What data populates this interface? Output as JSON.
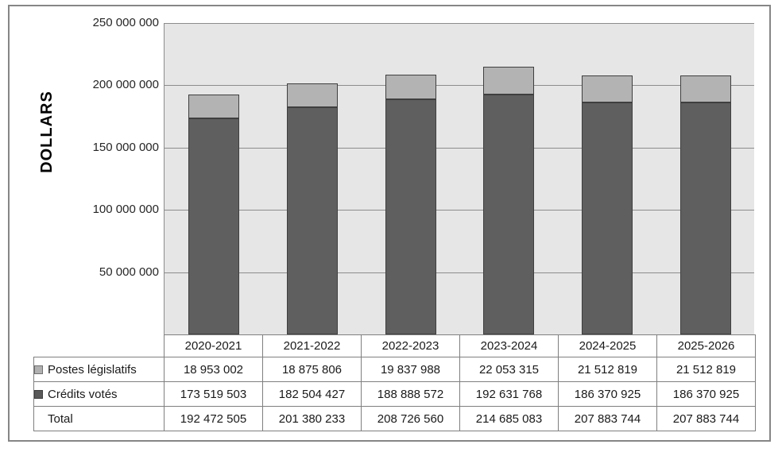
{
  "chart_data": {
    "type": "bar",
    "stacked": true,
    "title": "",
    "ylabel": "DOLLARS",
    "xlabel": "",
    "categories": [
      "2020-2021",
      "2021-2022",
      "2022-2023",
      "2023-2024",
      "2024-2025",
      "2025-2026"
    ],
    "series": [
      {
        "name": "Postes législatifs",
        "color": "#b3b3b3",
        "values": [
          18953002,
          18875806,
          19837988,
          22053315,
          21512819,
          21512819
        ]
      },
      {
        "name": "Crédits votés",
        "color": "#5f5f5f",
        "values": [
          173519503,
          182504427,
          188888572,
          192631768,
          186370925,
          186370925
        ]
      }
    ],
    "totals": [
      192472505,
      201380233,
      208726560,
      214685083,
      207883744,
      207883744
    ],
    "ylim": [
      0,
      250000000
    ],
    "ytick_interval": 50000000,
    "ytick_labels": [
      "250 000 000",
      "200 000 000",
      "150 000 000",
      "100 000 000",
      "50 000 000"
    ],
    "grid": true,
    "legend_position": "table-left",
    "plot_background": "#e6e6e6"
  },
  "table": {
    "header": [
      "2020-2021",
      "2021-2022",
      "2022-2023",
      "2023-2024",
      "2024-2025",
      "2025-2026"
    ],
    "rows": [
      {
        "label": "Postes législatifs",
        "swatch_color": "#b0b0b0",
        "swatch_border": "#707070",
        "values": [
          "18 953 002",
          "18 875 806",
          "19 837 988",
          "22 053 315",
          "21 512 819",
          "21 512 819"
        ]
      },
      {
        "label": "Crédits votés",
        "swatch_color": "#595959",
        "swatch_border": "#3f3f3f",
        "values": [
          "173 519 503",
          "182 504 427",
          "188 888 572",
          "192 631 768",
          "186 370 925",
          "186 370 925"
        ]
      },
      {
        "label": "Total",
        "swatch_color": null,
        "swatch_border": null,
        "values": [
          "192 472 505",
          "201 380 233",
          "208 726 560",
          "214 685 083",
          "207 883 744",
          "207 883 744"
        ]
      }
    ]
  },
  "colors": {
    "series_light": "#b3b3b3",
    "series_dark": "#5f5f5f",
    "bar_border": "#3f3f3f",
    "plot_background": "#e6e6e6",
    "gridline": "#8c8c8c",
    "table_border": "#7f7f7f",
    "figure_border": "#868686"
  }
}
